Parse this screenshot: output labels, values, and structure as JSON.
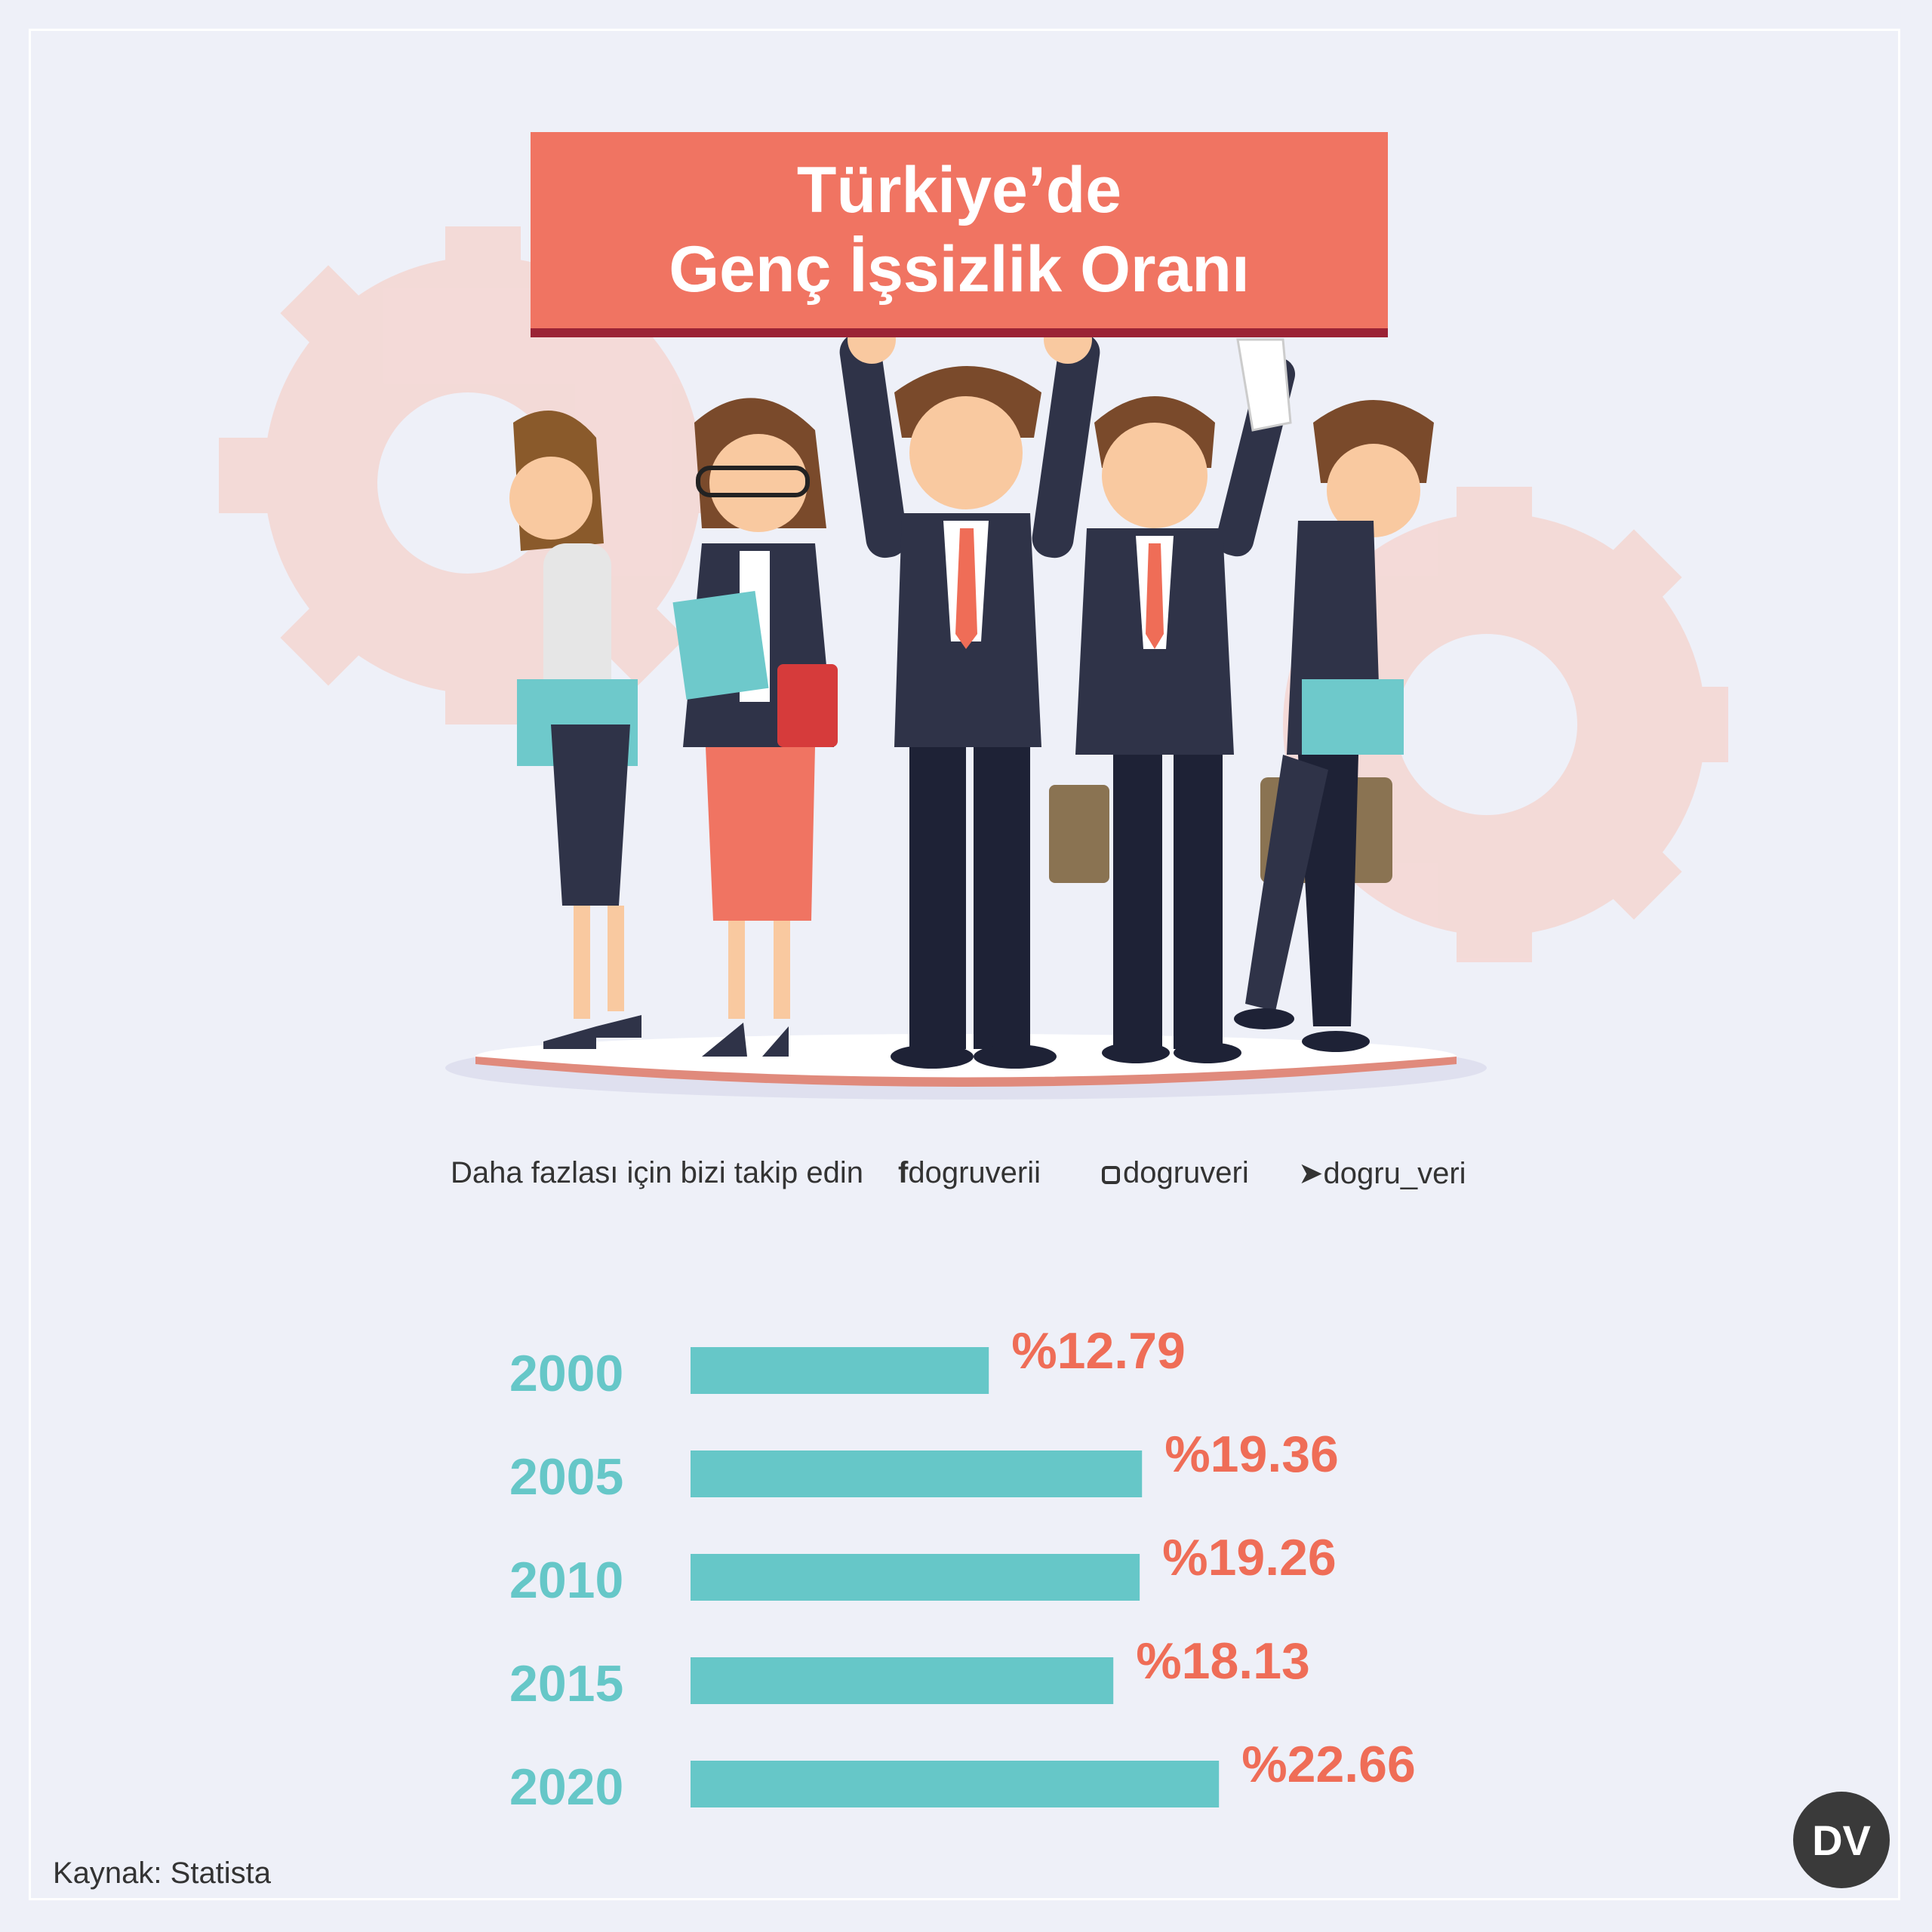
{
  "title": {
    "line1": "Türkiye’de",
    "line2": "Genç İşsizlik Oranı"
  },
  "social": {
    "prompt": "Daha fazlası için bizi takip edin",
    "facebook": "dogruverii",
    "instagram": "dogruveri",
    "twitter": "dogru_veri"
  },
  "source": "Kaynak: Statista",
  "logo": "DV",
  "colors": {
    "bar": "#66c7c8",
    "year_label": "#66c7c8",
    "value_label": "#ef6d57",
    "title_board": "#f07462"
  },
  "icons": [
    "facebook-icon",
    "instagram-icon",
    "twitter-icon"
  ],
  "chart_data": {
    "type": "bar",
    "orientation": "horizontal",
    "categories": [
      "2000",
      "2005",
      "2010",
      "2015",
      "2020"
    ],
    "values": [
      12.79,
      19.36,
      19.26,
      18.13,
      22.66
    ],
    "value_labels": [
      "%12.79",
      "%19.36",
      "%19.26",
      "%18.13",
      "%22.66"
    ],
    "title": "Türkiye’de Genç İşsizlik Oranı",
    "xlabel": "",
    "ylabel": "",
    "grid": false
  }
}
